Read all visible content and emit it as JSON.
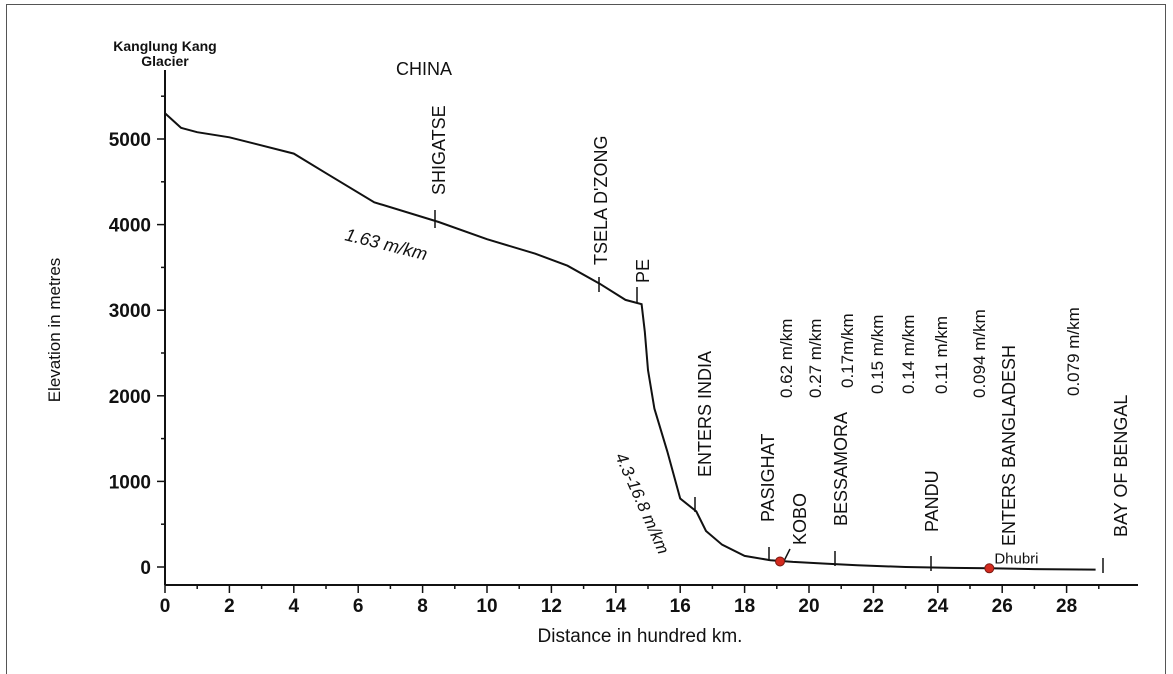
{
  "chart_data": {
    "type": "line",
    "xlabel": "Distance in hundred km.",
    "ylabel": "Elevation in metres",
    "xlim": [
      0,
      29
    ],
    "ylim": [
      0,
      5600
    ],
    "xticks": [
      "0",
      "2",
      "4",
      "6",
      "8",
      "10",
      "12",
      "14",
      "16",
      "18",
      "20",
      "22",
      "24",
      "26",
      "28"
    ],
    "yticks": [
      "0",
      "1000",
      "2000",
      "3000",
      "4000",
      "5000"
    ],
    "series": [
      {
        "x": [
          0,
          0.5,
          1.0,
          2.0,
          4.0,
          5.0,
          6.5,
          8.5,
          10.0,
          11.5,
          12.5,
          13.5,
          14.3,
          14.8,
          14.9,
          15.0,
          15.2,
          15.6,
          16.0,
          16.5,
          16.8,
          17.3,
          18.0,
          18.8,
          19.5,
          20.5,
          21.5,
          23.0,
          24.5,
          25.6,
          27.0,
          28.9
        ],
        "y": [
          5300,
          5130,
          5080,
          5020,
          4830,
          4600,
          4260,
          4030,
          3830,
          3660,
          3520,
          3310,
          3120,
          3070,
          2750,
          2300,
          1850,
          1350,
          800,
          650,
          420,
          260,
          130,
          80,
          60,
          40,
          20,
          0,
          -10,
          -15,
          -25,
          -30
        ]
      }
    ],
    "source_label": "Kanglung Kang\nGlacier",
    "region_label": "CHINA",
    "places": [
      {
        "name": "SHIGATSE",
        "x": 8.5
      },
      {
        "name": "TSELA D'ZONG",
        "x": 13.6
      },
      {
        "name": "PE",
        "x": 14.8
      },
      {
        "name": "ENTERS INDIA",
        "x": 16.5
      },
      {
        "name": "PASIGHAT",
        "x": 18.8
      },
      {
        "name": "KOBO",
        "x": 19.2
      },
      {
        "name": "BESSAMORA",
        "x": 20.6
      },
      {
        "name": "PANDU",
        "x": 23.6
      },
      {
        "name": "ENTERS BANGLADESH",
        "x": 25.6
      },
      {
        "name": "BAY OF BENGAL",
        "x": 28.9
      }
    ],
    "gradients": [
      "1.63 m/km",
      "4.3-16.8 m/km",
      "0.62 m/km",
      "0.27 m/km",
      "0.17m/km",
      "0.15 m/km",
      "0.14 m/km",
      "0.11 m/km",
      "0.094 m/km",
      "0.079 m/km"
    ],
    "markers": [
      {
        "name": "",
        "x": 19.1,
        "y": 100
      },
      {
        "name": "Dhubri",
        "x": 25.6,
        "y": 20
      }
    ],
    "colors": {
      "line": "#111111",
      "source_label": "#1b2fb0",
      "dhubri_label": "#c62fc6",
      "marker": "#d42a1e"
    }
  }
}
